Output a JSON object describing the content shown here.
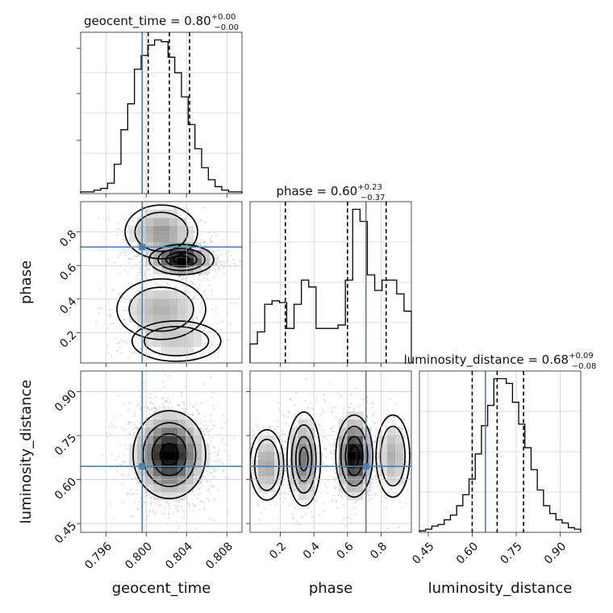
{
  "chart_data": {
    "type": "corner",
    "parameters": [
      {
        "key": "geocent_time",
        "label": "geocent_time",
        "title_main": "geocent_time = 0.80",
        "title_sup": "+0.00",
        "title_sub": "−0.00",
        "range": [
          0.7935,
          0.8095
        ],
        "ticks": [
          0.796,
          0.8,
          0.804,
          0.808
        ],
        "tick_labels": [
          "0.796",
          "0.800",
          "0.804",
          "0.808"
        ],
        "truth": 0.7996,
        "quantiles": [
          0.8002,
          0.8023,
          0.8043
        ]
      },
      {
        "key": "phase",
        "label": "phase",
        "title_main": "phase = 0.60",
        "title_sup": "+0.23",
        "title_sub": "−0.37",
        "range": [
          0.02,
          0.98
        ],
        "ticks": [
          0.2,
          0.4,
          0.6,
          0.8
        ],
        "tick_labels": [
          "0.2",
          "0.4",
          "0.6",
          "0.8"
        ],
        "truth": 0.71,
        "quantiles": [
          0.23,
          0.6,
          0.83
        ]
      },
      {
        "key": "luminosity_distance",
        "label": "luminosity_distance",
        "title_main": "luminosity_distance = 0.68",
        "title_sup": "+0.09",
        "title_sub": "−0.08",
        "range": [
          0.42,
          0.97
        ],
        "ticks": [
          0.45,
          0.6,
          0.75,
          0.9
        ],
        "tick_labels": [
          "0.45",
          "0.60",
          "0.75",
          "0.90"
        ],
        "truth": 0.645,
        "quantiles": [
          0.6,
          0.685,
          0.775
        ]
      }
    ],
    "histograms": {
      "geocent_time": [
        1,
        1,
        2,
        3,
        6,
        17,
        37,
        52,
        72,
        80,
        86,
        89,
        88,
        79,
        70,
        56,
        40,
        26,
        15,
        8,
        4,
        2,
        1,
        1
      ],
      "phase": [
        11,
        18,
        34,
        36,
        35,
        20,
        34,
        48,
        44,
        20,
        20,
        20,
        22,
        48,
        89,
        82,
        51,
        42,
        48,
        48,
        40,
        30
      ],
      "luminosity_distance": [
        1,
        2,
        4,
        5,
        8,
        11,
        17,
        24,
        34,
        50,
        68,
        81,
        98,
        98,
        95,
        83,
        69,
        54,
        40,
        27,
        17,
        12,
        8,
        6,
        3,
        2
      ]
    },
    "densities": {
      "phase_vs_geocent_time": [
        {
          "x": 0.8015,
          "y": 0.8,
          "sx": 0.0018,
          "sy": 0.08,
          "w": 0.45
        },
        {
          "x": 0.8035,
          "y": 0.635,
          "sx": 0.0016,
          "sy": 0.045,
          "w": 1.0
        },
        {
          "x": 0.8015,
          "y": 0.34,
          "sx": 0.0022,
          "sy": 0.09,
          "w": 0.35
        },
        {
          "x": 0.803,
          "y": 0.15,
          "sx": 0.0022,
          "sy": 0.06,
          "w": 0.22
        }
      ],
      "luminosity_distance_vs_geocent_time": [
        {
          "x": 0.8023,
          "y": 0.685,
          "sx": 0.0018,
          "sy": 0.075,
          "w": 1.0
        }
      ],
      "luminosity_distance_vs_phase": [
        {
          "x": 0.64,
          "y": 0.68,
          "sx": 0.055,
          "sy": 0.07,
          "w": 1.0
        },
        {
          "x": 0.34,
          "y": 0.67,
          "sx": 0.05,
          "sy": 0.08,
          "w": 0.55
        },
        {
          "x": 0.12,
          "y": 0.65,
          "sx": 0.05,
          "sy": 0.06,
          "w": 0.4
        },
        {
          "x": 0.87,
          "y": 0.68,
          "sx": 0.05,
          "sy": 0.07,
          "w": 0.35
        }
      ]
    },
    "truth_color": "#4682b4",
    "contour_color": "#000000"
  }
}
